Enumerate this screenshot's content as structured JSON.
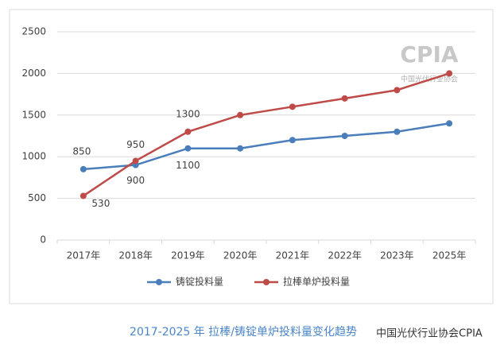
{
  "chart_data": {
    "type": "line",
    "categories": [
      "2017年",
      "2018年",
      "2019年",
      "2020年",
      "2021年",
      "2022年",
      "2023年",
      "2025年"
    ],
    "series": [
      {
        "name": "铸锭投料量",
        "color": "#4a7ebb",
        "values": [
          850,
          900,
          1100,
          1100,
          1200,
          1250,
          1300,
          1400
        ],
        "value_labels": [
          850,
          900,
          1100,
          null,
          null,
          null,
          null,
          null
        ]
      },
      {
        "name": "拉棒单炉投料量",
        "color": "#be4b48",
        "values": [
          530,
          950,
          1300,
          1500,
          1600,
          1700,
          1800,
          2000
        ],
        "value_labels": [
          530,
          950,
          1300,
          null,
          null,
          null,
          null,
          null
        ]
      }
    ],
    "ylim": [
      0,
      2500
    ],
    "yticks": [
      0,
      500,
      1000,
      1500,
      2000,
      2500
    ],
    "grid": true,
    "legend": "bottom",
    "caption": "2017-2025 年  拉棒/铸锭单炉投料量变化趋势",
    "logo": "CPIA",
    "logo_subtitle": "中国光伏行业协会",
    "watermark": "中国光伏行业协会CPIA"
  }
}
